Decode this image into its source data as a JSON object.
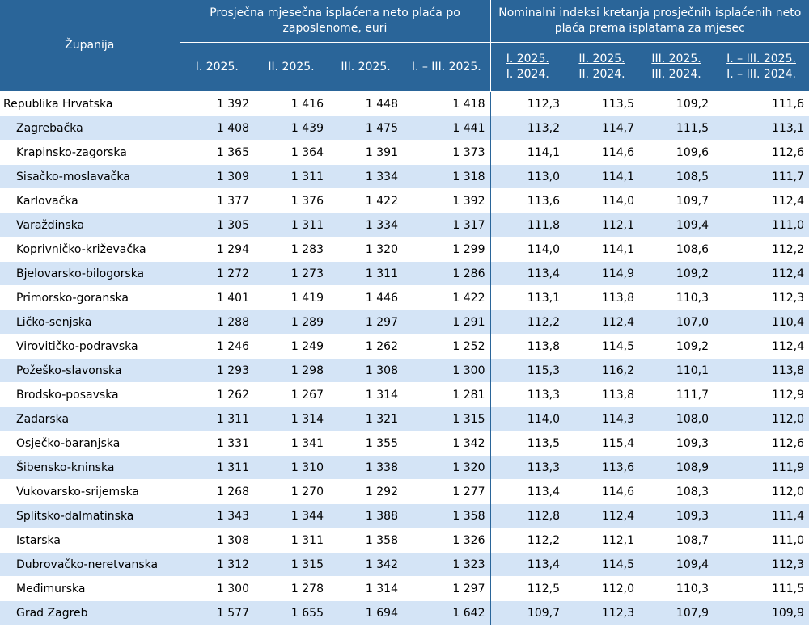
{
  "header": {
    "county": "Županija",
    "group1": "Prosječna mjesečna isplaćena neto plaća po zaposlenome, euri",
    "group2": "Nominalni indeksi kretanja prosječnih isplaćenih neto plaća prema isplatama za mjesec",
    "sub1": [
      "I. 2025.",
      "II. 2025.",
      "III. 2025.",
      "I. – III. 2025."
    ],
    "sub2": [
      {
        "top": "I. 2025.",
        "bottom": "I. 2024."
      },
      {
        "top": "II. 2025.",
        "bottom": "II. 2024."
      },
      {
        "top": "III. 2025.",
        "bottom": "III. 2024."
      },
      {
        "top": "I. – III. 2025.",
        "bottom": "I. – III. 2024."
      }
    ]
  },
  "rows": [
    {
      "name": "Republika Hrvatska",
      "v": [
        "1 392",
        "1 416",
        "1 448",
        "1 418",
        "112,3",
        "113,5",
        "109,2",
        "111,6"
      ]
    },
    {
      "name": "Zagrebačka",
      "v": [
        "1 408",
        "1 439",
        "1 475",
        "1 441",
        "113,2",
        "114,7",
        "111,5",
        "113,1"
      ]
    },
    {
      "name": "Krapinsko-zagorska",
      "v": [
        "1 365",
        "1 364",
        "1 391",
        "1 373",
        "114,1",
        "114,6",
        "109,6",
        "112,6"
      ]
    },
    {
      "name": "Sisačko-moslavačka",
      "v": [
        "1 309",
        "1 311",
        "1 334",
        "1 318",
        "113,0",
        "114,1",
        "108,5",
        "111,7"
      ]
    },
    {
      "name": "Karlovačka",
      "v": [
        "1 377",
        "1 376",
        "1 422",
        "1 392",
        "113,6",
        "114,0",
        "109,7",
        "112,4"
      ]
    },
    {
      "name": "Varaždinska",
      "v": [
        "1 305",
        "1 311",
        "1 334",
        "1 317",
        "111,8",
        "112,1",
        "109,4",
        "111,0"
      ]
    },
    {
      "name": "Koprivničko-križevačka",
      "v": [
        "1 294",
        "1 283",
        "1 320",
        "1 299",
        "114,0",
        "114,1",
        "108,6",
        "112,2"
      ]
    },
    {
      "name": "Bjelovarsko-bilogorska",
      "v": [
        "1 272",
        "1 273",
        "1 311",
        "1 286",
        "113,4",
        "114,9",
        "109,2",
        "112,4"
      ]
    },
    {
      "name": "Primorsko-goranska",
      "v": [
        "1 401",
        "1 419",
        "1 446",
        "1 422",
        "113,1",
        "113,8",
        "110,3",
        "112,3"
      ]
    },
    {
      "name": "Ličko-senjska",
      "v": [
        "1 288",
        "1 289",
        "1 297",
        "1 291",
        "112,2",
        "112,4",
        "107,0",
        "110,4"
      ]
    },
    {
      "name": "Virovitičko-podravska",
      "v": [
        "1 246",
        "1 249",
        "1 262",
        "1 252",
        "113,8",
        "114,5",
        "109,2",
        "112,4"
      ]
    },
    {
      "name": "Požeško-slavonska",
      "v": [
        "1 293",
        "1 298",
        "1 308",
        "1 300",
        "115,3",
        "116,2",
        "110,1",
        "113,8"
      ]
    },
    {
      "name": "Brodsko-posavska",
      "v": [
        "1 262",
        "1 267",
        "1 314",
        "1 281",
        "113,3",
        "113,8",
        "111,7",
        "112,9"
      ]
    },
    {
      "name": "Zadarska",
      "v": [
        "1 311",
        "1 314",
        "1 321",
        "1 315",
        "114,0",
        "114,3",
        "108,0",
        "112,0"
      ]
    },
    {
      "name": "Osječko-baranjska",
      "v": [
        "1 331",
        "1 341",
        "1 355",
        "1 342",
        "113,5",
        "115,4",
        "109,3",
        "112,6"
      ]
    },
    {
      "name": "Šibensko-kninska",
      "v": [
        "1 311",
        "1 310",
        "1 338",
        "1 320",
        "113,3",
        "113,6",
        "108,9",
        "111,9"
      ]
    },
    {
      "name": "Vukovarsko-srijemska",
      "v": [
        "1 268",
        "1 270",
        "1 292",
        "1 277",
        "113,4",
        "114,6",
        "108,3",
        "112,0"
      ]
    },
    {
      "name": "Splitsko-dalmatinska",
      "v": [
        "1 343",
        "1 344",
        "1 388",
        "1 358",
        "112,8",
        "112,4",
        "109,3",
        "111,4"
      ]
    },
    {
      "name": "Istarska",
      "v": [
        "1 308",
        "1 311",
        "1 358",
        "1 326",
        "112,2",
        "112,1",
        "108,7",
        "111,0"
      ]
    },
    {
      "name": "Dubrovačko-neretvanska",
      "v": [
        "1 312",
        "1 315",
        "1 342",
        "1 323",
        "113,4",
        "114,5",
        "109,4",
        "112,3"
      ]
    },
    {
      "name": "Međimurska",
      "v": [
        "1 300",
        "1 278",
        "1 314",
        "1 297",
        "112,5",
        "112,0",
        "110,3",
        "111,5"
      ]
    },
    {
      "name": "Grad Zagreb",
      "v": [
        "1 577",
        "1 655",
        "1 694",
        "1 642",
        "109,7",
        "112,3",
        "107,9",
        "109,9"
      ]
    }
  ]
}
